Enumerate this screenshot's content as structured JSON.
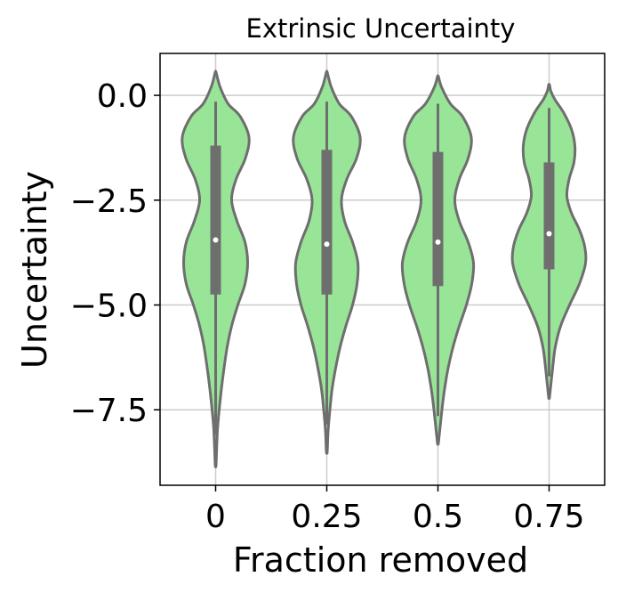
{
  "chart_data": {
    "type": "violin",
    "title": "Extrinsic Uncertainty",
    "xlabel": "Fraction removed",
    "ylabel": "Uncertainty",
    "categories": [
      "0",
      "0.25",
      "0.5",
      "0.75"
    ],
    "ylim": [
      -9.3,
      1.0
    ],
    "yticks": [
      0.0,
      -2.5,
      -5.0,
      -7.5
    ],
    "ytick_labels": [
      "0.0",
      "−2.5",
      "−5.0",
      "−7.5"
    ],
    "grid": true,
    "violin_fill": "#98e598",
    "line_color": "#6e6e6e",
    "grid_color": "#cccccc",
    "series": [
      {
        "category": "0",
        "median": -3.45,
        "q1": -4.75,
        "q3": -1.2,
        "whisker_low": -8.1,
        "whisker_high": -0.15,
        "extent": [
          -8.8,
          0.55
        ],
        "density": [
          [
            -8.8,
            0.01
          ],
          [
            -8.0,
            0.04
          ],
          [
            -7.5,
            0.08
          ],
          [
            -7.0,
            0.13
          ],
          [
            -6.5,
            0.19
          ],
          [
            -6.0,
            0.26
          ],
          [
            -5.5,
            0.36
          ],
          [
            -5.0,
            0.5
          ],
          [
            -4.5,
            0.66
          ],
          [
            -4.0,
            0.72
          ],
          [
            -3.5,
            0.66
          ],
          [
            -3.0,
            0.48
          ],
          [
            -2.5,
            0.36
          ],
          [
            -2.0,
            0.46
          ],
          [
            -1.5,
            0.67
          ],
          [
            -1.0,
            0.75
          ],
          [
            -0.5,
            0.55
          ],
          [
            -0.2,
            0.28
          ],
          [
            0.2,
            0.1
          ],
          [
            0.55,
            0.01
          ]
        ]
      },
      {
        "category": "0.25",
        "median": -3.55,
        "q1": -4.75,
        "q3": -1.3,
        "whisker_low": -7.85,
        "whisker_high": -0.15,
        "extent": [
          -8.5,
          0.55
        ],
        "density": [
          [
            -8.5,
            0.01
          ],
          [
            -8.0,
            0.03
          ],
          [
            -7.5,
            0.07
          ],
          [
            -7.0,
            0.12
          ],
          [
            -6.5,
            0.2
          ],
          [
            -6.0,
            0.3
          ],
          [
            -5.5,
            0.43
          ],
          [
            -5.0,
            0.58
          ],
          [
            -4.5,
            0.68
          ],
          [
            -4.0,
            0.7
          ],
          [
            -3.5,
            0.58
          ],
          [
            -3.0,
            0.4
          ],
          [
            -2.5,
            0.33
          ],
          [
            -2.0,
            0.45
          ],
          [
            -1.5,
            0.67
          ],
          [
            -1.0,
            0.75
          ],
          [
            -0.5,
            0.55
          ],
          [
            -0.2,
            0.28
          ],
          [
            0.2,
            0.1
          ],
          [
            0.55,
            0.01
          ]
        ]
      },
      {
        "category": "0.5",
        "median": -3.5,
        "q1": -4.55,
        "q3": -1.35,
        "whisker_low": -7.65,
        "whisker_high": -0.2,
        "extent": [
          -8.3,
          0.45
        ],
        "density": [
          [
            -8.3,
            0.01
          ],
          [
            -8.0,
            0.04
          ],
          [
            -7.5,
            0.09
          ],
          [
            -7.0,
            0.15
          ],
          [
            -6.5,
            0.23
          ],
          [
            -6.0,
            0.34
          ],
          [
            -5.5,
            0.48
          ],
          [
            -5.0,
            0.64
          ],
          [
            -4.5,
            0.76
          ],
          [
            -4.0,
            0.8
          ],
          [
            -3.5,
            0.68
          ],
          [
            -3.0,
            0.48
          ],
          [
            -2.5,
            0.38
          ],
          [
            -2.0,
            0.48
          ],
          [
            -1.5,
            0.68
          ],
          [
            -1.0,
            0.75
          ],
          [
            -0.5,
            0.55
          ],
          [
            -0.2,
            0.28
          ],
          [
            0.2,
            0.08
          ],
          [
            0.45,
            0.01
          ]
        ]
      },
      {
        "category": "0.75",
        "median": -3.3,
        "q1": -4.15,
        "q3": -1.6,
        "whisker_low": -6.7,
        "whisker_high": -0.3,
        "extent": [
          -7.2,
          0.25
        ],
        "density": [
          [
            -7.2,
            0.01
          ],
          [
            -6.8,
            0.05
          ],
          [
            -6.4,
            0.09
          ],
          [
            -6.0,
            0.14
          ],
          [
            -5.5,
            0.26
          ],
          [
            -5.0,
            0.46
          ],
          [
            -4.5,
            0.68
          ],
          [
            -4.0,
            0.82
          ],
          [
            -3.6,
            0.8
          ],
          [
            -3.2,
            0.68
          ],
          [
            -2.8,
            0.5
          ],
          [
            -2.4,
            0.4
          ],
          [
            -2.0,
            0.45
          ],
          [
            -1.6,
            0.56
          ],
          [
            -1.2,
            0.58
          ],
          [
            -0.8,
            0.5
          ],
          [
            -0.4,
            0.32
          ],
          [
            -0.1,
            0.13
          ],
          [
            0.1,
            0.04
          ],
          [
            0.25,
            0.01
          ]
        ]
      }
    ]
  }
}
